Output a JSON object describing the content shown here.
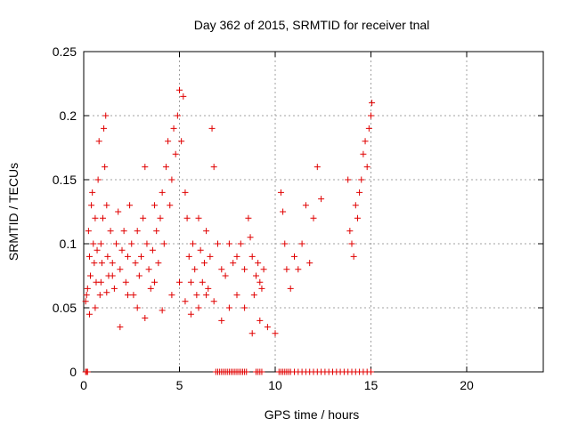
{
  "chart_data": {
    "type": "scatter",
    "title": "Day 362 of 2015, SRMTID for receiver tnal",
    "xlabel": "GPS time / hours",
    "ylabel": "SRMTID / TECUs",
    "xlim": [
      0,
      24
    ],
    "ylim": [
      0,
      0.25
    ],
    "xticks": [
      0,
      5,
      10,
      15,
      20
    ],
    "xtick_labels": [
      "0",
      "5",
      "10",
      "15",
      "20"
    ],
    "yticks": [
      0,
      0.05,
      0.1,
      0.15,
      0.2,
      0.25
    ],
    "ytick_labels": [
      "0",
      "0.05",
      "0.1",
      "0.15",
      "0.2",
      "0.25"
    ],
    "grid": true,
    "marker": "plus",
    "color": "#e00000",
    "series": [
      {
        "x": [
          0.1,
          0.15,
          0.2,
          0.25,
          0.3,
          0.35,
          0.4,
          0.45,
          0.5,
          0.55,
          0.6,
          0.65,
          0.7,
          0.75,
          0.8,
          0.85,
          0.9,
          0.95,
          1.0,
          1.05,
          1.1,
          1.15,
          1.2,
          1.25,
          1.3,
          1.4,
          1.5,
          1.6,
          1.7,
          1.8,
          1.9,
          2.0,
          2.1,
          2.2,
          2.3,
          2.4,
          2.5,
          2.6,
          2.7,
          2.8,
          2.9,
          3.0,
          3.1,
          3.2,
          3.3,
          3.4,
          3.5,
          3.6,
          3.7,
          3.8,
          3.9,
          4.0,
          4.1,
          4.2,
          4.3,
          4.4,
          4.5,
          4.6,
          4.7,
          4.8,
          4.9,
          5.0,
          5.1,
          5.2,
          5.3,
          5.4,
          5.5,
          5.6,
          5.7,
          5.8,
          5.9,
          6.0,
          6.1,
          6.2,
          6.3,
          6.4,
          6.5,
          6.6,
          6.7,
          6.8,
          7.0,
          7.2,
          7.4,
          7.6,
          7.8,
          8.0,
          8.2,
          8.4,
          8.6,
          8.7,
          8.8,
          8.9,
          9.0,
          9.1,
          9.2,
          9.3,
          9.4,
          10.3,
          10.4,
          10.5,
          10.6,
          10.8,
          11.0,
          11.2,
          11.4,
          11.6,
          11.8,
          12.0,
          12.2,
          12.4,
          13.8,
          13.9,
          14.0,
          14.1,
          14.2,
          14.3,
          14.4,
          14.5,
          14.6,
          14.7,
          14.8,
          14.9,
          15.0,
          15.05,
          0.3,
          0.6,
          0.9,
          1.2,
          1.5,
          1.9,
          2.3,
          2.8,
          3.2,
          3.7,
          4.1,
          4.6,
          5.0,
          5.3,
          5.6,
          6.0,
          6.4,
          6.8,
          7.2,
          7.6,
          8.0,
          8.4,
          8.8,
          9.2,
          9.6,
          10.0
        ],
        "y": [
          0.055,
          0.06,
          0.065,
          0.11,
          0.09,
          0.075,
          0.13,
          0.14,
          0.1,
          0.085,
          0.12,
          0.07,
          0.095,
          0.15,
          0.18,
          0.06,
          0.1,
          0.085,
          0.12,
          0.19,
          0.16,
          0.2,
          0.13,
          0.09,
          0.075,
          0.11,
          0.085,
          0.065,
          0.1,
          0.125,
          0.08,
          0.095,
          0.11,
          0.07,
          0.09,
          0.13,
          0.1,
          0.06,
          0.085,
          0.11,
          0.075,
          0.09,
          0.12,
          0.16,
          0.1,
          0.08,
          0.065,
          0.095,
          0.13,
          0.11,
          0.085,
          0.12,
          0.14,
          0.1,
          0.16,
          0.18,
          0.13,
          0.15,
          0.19,
          0.17,
          0.2,
          0.22,
          0.18,
          0.215,
          0.14,
          0.12,
          0.09,
          0.07,
          0.1,
          0.08,
          0.06,
          0.12,
          0.095,
          0.07,
          0.085,
          0.11,
          0.065,
          0.09,
          0.19,
          0.16,
          0.1,
          0.08,
          0.075,
          0.1,
          0.085,
          0.09,
          0.1,
          0.08,
          0.12,
          0.105,
          0.09,
          0.06,
          0.075,
          0.085,
          0.07,
          0.065,
          0.08,
          0.14,
          0.125,
          0.1,
          0.08,
          0.065,
          0.09,
          0.08,
          0.1,
          0.13,
          0.085,
          0.12,
          0.16,
          0.135,
          0.15,
          0.11,
          0.1,
          0.09,
          0.13,
          0.12,
          0.14,
          0.15,
          0.17,
          0.18,
          0.16,
          0.19,
          0.2,
          0.21,
          0.045,
          0.05,
          0.07,
          0.062,
          0.075,
          0.035,
          0.06,
          0.05,
          0.042,
          0.07,
          0.048,
          0.06,
          0.07,
          0.055,
          0.045,
          0.05,
          0.06,
          0.055,
          0.04,
          0.05,
          0.06,
          0.05,
          0.03,
          0.04,
          0.035,
          0.03
        ]
      },
      {
        "x": [
          0.1,
          0.15,
          0.2,
          6.9,
          7.0,
          7.1,
          7.2,
          7.3,
          7.4,
          7.5,
          7.6,
          7.7,
          7.8,
          7.9,
          8.0,
          8.1,
          8.2,
          8.3,
          8.4,
          8.5,
          9.0,
          9.1,
          9.2,
          9.3,
          10.2,
          10.3,
          10.4,
          10.5,
          10.6,
          10.7,
          10.8,
          11.0,
          11.2,
          11.4,
          11.6,
          11.8,
          12.0,
          12.2,
          12.4,
          12.6,
          12.8,
          13.0,
          13.2,
          13.4,
          13.6,
          13.8,
          14.0,
          14.2,
          14.4,
          14.6,
          14.8,
          15.0
        ],
        "y": [
          0,
          0,
          0,
          0,
          0,
          0,
          0,
          0,
          0,
          0,
          0,
          0,
          0,
          0,
          0,
          0,
          0,
          0,
          0,
          0,
          0,
          0,
          0,
          0,
          0,
          0,
          0,
          0,
          0,
          0,
          0,
          0,
          0,
          0,
          0,
          0,
          0,
          0,
          0,
          0,
          0,
          0,
          0,
          0,
          0,
          0,
          0,
          0,
          0,
          0,
          0,
          0
        ]
      }
    ]
  }
}
